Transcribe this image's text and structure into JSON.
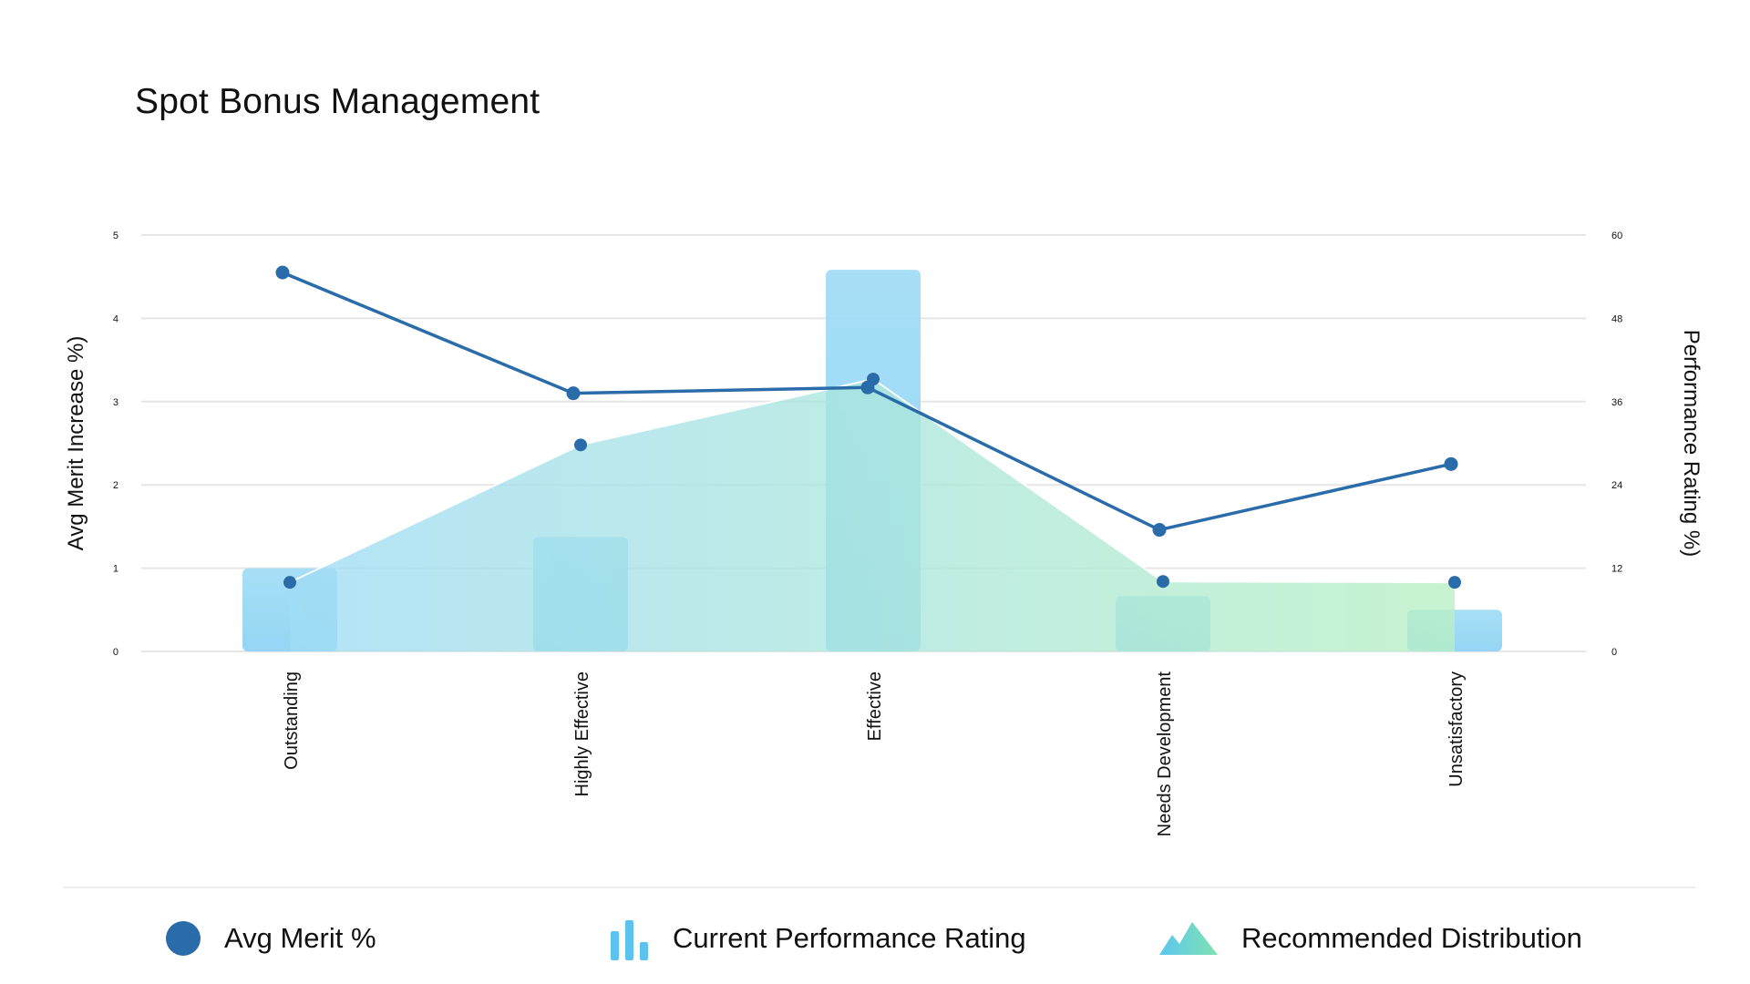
{
  "title": "Spot Bonus Management",
  "colors": {
    "line": "#2a6ba9",
    "bar_top": "#a3ddf6",
    "bar_bottom": "#8fd3f3",
    "area_left": "#9fdcf5",
    "area_right": "#b8f0c4",
    "grid": "#e6e6e6",
    "axis_text": "#111111"
  },
  "chart_data": {
    "type": "bar",
    "title": "Spot Bonus Management",
    "categories": [
      "Outstanding",
      "Highly Effective",
      "Effective",
      "Needs Development",
      "Unsatisfactory"
    ],
    "y_left": {
      "label": "Avg Merit Increase %)",
      "range": [
        0,
        5
      ],
      "ticks": [
        0,
        1,
        2,
        3,
        4,
        5
      ]
    },
    "y_right": {
      "label": "Performance Rating %)",
      "range": [
        0,
        60
      ],
      "ticks": [
        0,
        12,
        24,
        36,
        48,
        60
      ]
    },
    "grid": true,
    "legend_position": "bottom",
    "series": [
      {
        "name": "Avg Merit %",
        "type": "line",
        "axis": "left",
        "values": [
          4.55,
          3.1,
          3.17,
          1.46,
          2.25
        ]
      },
      {
        "name": "Current Performance Rating",
        "type": "bar",
        "axis": "right",
        "values": [
          12,
          16.5,
          55,
          8,
          6
        ]
      },
      {
        "name": "Recommended Distribution",
        "type": "area",
        "axis": "left",
        "values": [
          0.83,
          2.48,
          3.27,
          0.84,
          0.83
        ]
      }
    ]
  },
  "legend": [
    {
      "label": "Avg Merit %",
      "icon": "dot-icon"
    },
    {
      "label": "Current Performance Rating",
      "icon": "bar-chart-icon"
    },
    {
      "label": "Recommended Distribution",
      "icon": "mountain-icon"
    }
  ]
}
